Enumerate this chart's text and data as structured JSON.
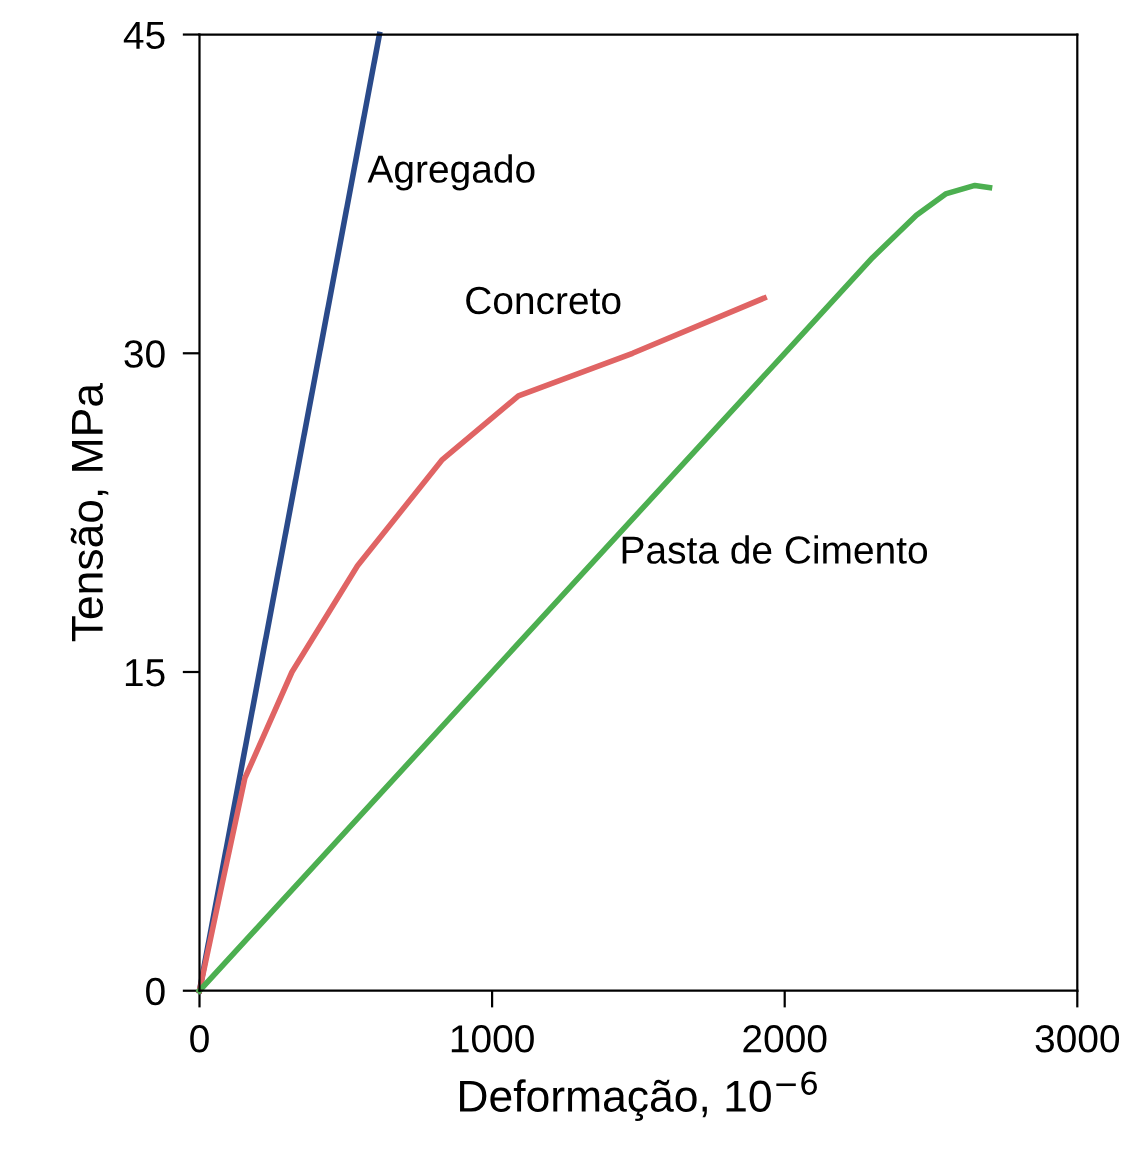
{
  "chart_data": {
    "type": "line",
    "xlabel": "Deformação, 10$^{−6}$",
    "ylabel": "Tensão, MPa",
    "xlim": [
      0,
      3000
    ],
    "ylim": [
      0,
      45
    ],
    "xticks": [
      0,
      1000,
      2000,
      3000
    ],
    "yticks": [
      0,
      15,
      30,
      45
    ],
    "grid": false,
    "legend": false,
    "marker": "none",
    "line_style": "solid",
    "series": [
      {
        "name": "Agregado",
        "color": "#2a4a8a",
        "x": [
          0,
          615
        ],
        "values": [
          0,
          45
        ]
      },
      {
        "name": "Concreto",
        "color": "#e06464",
        "x": [
          0,
          77,
          155,
          316,
          540,
          830,
          1090,
          1480,
          1930
        ],
        "values": [
          0,
          5,
          10,
          15,
          20,
          25,
          28,
          30,
          32.6
        ]
      },
      {
        "name": "Pasta de Cimento",
        "color": "#4caf50",
        "x": [
          0,
          2000,
          2300,
          2450,
          2550,
          2650,
          2700
        ],
        "values": [
          0,
          30,
          34.5,
          36.5,
          37.5,
          37.9,
          37.8
        ]
      }
    ]
  }
}
